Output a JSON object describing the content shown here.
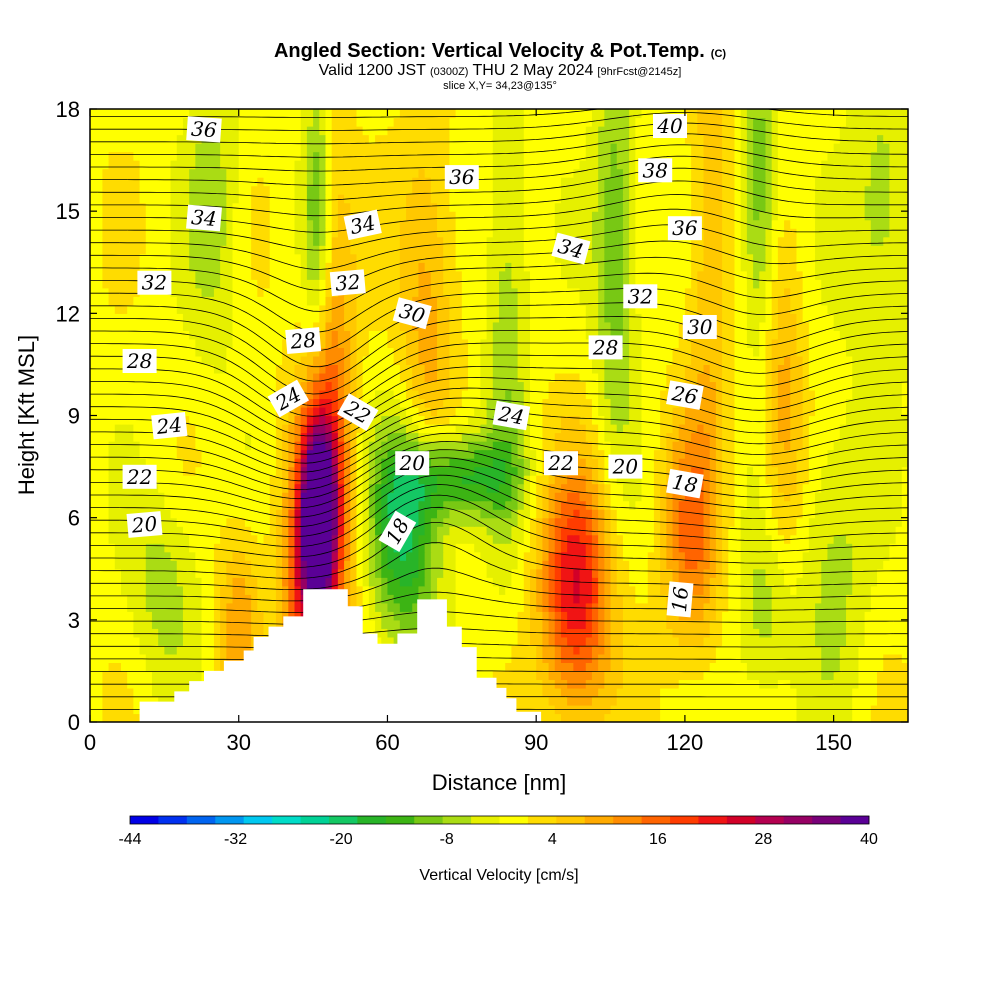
{
  "title": {
    "main": "Angled Section: Vertical Velocity & Pot.Temp.",
    "main_unit": "(C)",
    "line2_a": "Valid 1200 JST",
    "line2_b": "(0300Z)",
    "line2_c": "THU 2 May 2024",
    "line2_d": "[9hrFcst@2145z]",
    "line3": "slice X,Y= 34,23@135°"
  },
  "chart_data": {
    "type": "heatmap",
    "xlabel": "Distance [nm]",
    "ylabel": "Height [Kft MSL]",
    "xlim": [
      0,
      165
    ],
    "ylim": [
      0,
      18
    ],
    "x_ticks": [
      0,
      30,
      60,
      90,
      120,
      150
    ],
    "y_ticks": [
      0,
      3,
      6,
      9,
      12,
      15,
      18
    ],
    "grid": false,
    "colorbar": {
      "title": "Vertical Velocity [cm/s]",
      "labels": [
        "-44",
        "-32",
        "-20",
        "-8",
        "4",
        "16",
        "28",
        "40"
      ],
      "colors": [
        "#0000e6",
        "#0030f0",
        "#0064f0",
        "#0096f0",
        "#00c8f0",
        "#00dcc8",
        "#00d296",
        "#14c864",
        "#28b428",
        "#3cb414",
        "#78c814",
        "#aadc14",
        "#e6f000",
        "#ffff00",
        "#ffdc00",
        "#ffc800",
        "#ffaa00",
        "#ff8c00",
        "#ff6400",
        "#ff3c00",
        "#f01414",
        "#d20028",
        "#b40050",
        "#960064",
        "#780078",
        "#5a0096"
      ]
    },
    "vertical_velocity_cm_s": {
      "background": 0,
      "features": [
        {
          "x": 46,
          "y": 6.2,
          "sx": 2.2,
          "sy": 1.6,
          "amp": 42
        },
        {
          "x": 46,
          "y": 5.5,
          "sx": 4.5,
          "sy": 3.2,
          "amp": 20
        },
        {
          "x": 43,
          "y": 3.5,
          "sx": 3,
          "sy": 1.5,
          "amp": 10
        },
        {
          "x": 49,
          "y": 11,
          "sx": 3,
          "sy": 5,
          "amp": 10
        },
        {
          "x": 46,
          "y": 15,
          "sx": 2,
          "sy": 3,
          "amp": -12
        },
        {
          "x": 64,
          "y": 5.5,
          "sx": 5,
          "sy": 2.2,
          "amp": -20
        },
        {
          "x": 74,
          "y": 7.2,
          "sx": 8,
          "sy": 0.9,
          "amp": -16
        },
        {
          "x": 68,
          "y": 12,
          "sx": 4,
          "sy": 4,
          "amp": 10
        },
        {
          "x": 84,
          "y": 12,
          "sx": 3,
          "sy": 5,
          "amp": -8
        },
        {
          "x": 98,
          "y": 3.8,
          "sx": 5,
          "sy": 2.5,
          "amp": 24
        },
        {
          "x": 121,
          "y": 5.5,
          "sx": 4,
          "sy": 2.5,
          "amp": 14
        },
        {
          "x": 106,
          "y": 14,
          "sx": 3,
          "sy": 4,
          "amp": -12
        },
        {
          "x": 125,
          "y": 14,
          "sx": 3,
          "sy": 5,
          "amp": 8
        },
        {
          "x": 135,
          "y": 15.5,
          "sx": 2.5,
          "sy": 3,
          "amp": -12
        },
        {
          "x": 140,
          "y": 9,
          "sx": 3,
          "sy": 3,
          "amp": 10
        },
        {
          "x": 150,
          "y": 5,
          "sx": 5,
          "sy": 3,
          "amp": -7
        },
        {
          "x": 160,
          "y": 15,
          "sx": 5,
          "sy": 3,
          "amp": -8
        },
        {
          "x": 25,
          "y": 15,
          "sx": 4,
          "sy": 3,
          "amp": -7
        },
        {
          "x": 15,
          "y": 4,
          "sx": 5,
          "sy": 2,
          "amp": -7
        },
        {
          "x": 30,
          "y": 3,
          "sx": 3,
          "sy": 2,
          "amp": 10
        },
        {
          "x": 136,
          "y": 3,
          "sx": 4,
          "sy": 2,
          "amp": -7
        }
      ]
    },
    "terrain_profile": [
      [
        0,
        0
      ],
      [
        10,
        0
      ],
      [
        10,
        0.6
      ],
      [
        17,
        0.6
      ],
      [
        17,
        0.9
      ],
      [
        20,
        0.9
      ],
      [
        20,
        1.2
      ],
      [
        23,
        1.2
      ],
      [
        23,
        1.5
      ],
      [
        27,
        1.5
      ],
      [
        27,
        1.8
      ],
      [
        31,
        1.8
      ],
      [
        31,
        2.1
      ],
      [
        33,
        2.1
      ],
      [
        33,
        2.5
      ],
      [
        36,
        2.5
      ],
      [
        36,
        2.8
      ],
      [
        39,
        2.8
      ],
      [
        39,
        3.1
      ],
      [
        43,
        3.1
      ],
      [
        43,
        3.9
      ],
      [
        52,
        3.9
      ],
      [
        52,
        3.4
      ],
      [
        55,
        3.4
      ],
      [
        55,
        2.6
      ],
      [
        58,
        2.6
      ],
      [
        58,
        2.3
      ],
      [
        62,
        2.3
      ],
      [
        62,
        2.6
      ],
      [
        66,
        2.6
      ],
      [
        66,
        3.6
      ],
      [
        72,
        3.6
      ],
      [
        72,
        2.8
      ],
      [
        75,
        2.8
      ],
      [
        75,
        2.2
      ],
      [
        78,
        2.2
      ],
      [
        78,
        1.3
      ],
      [
        82,
        1.3
      ],
      [
        82,
        1.0
      ],
      [
        84,
        1.0
      ],
      [
        84,
        0.7
      ],
      [
        86,
        0.7
      ],
      [
        86,
        0.3
      ],
      [
        91,
        0.3
      ],
      [
        91,
        0
      ],
      [
        165,
        0
      ]
    ],
    "potential_temperature_C": {
      "contour_levels": [
        15,
        15.5,
        16,
        16.5,
        17,
        17.5,
        18,
        18.5,
        19,
        19.5,
        20,
        20.5,
        21,
        21.5,
        22,
        22.5,
        23,
        23.5,
        24,
        24.5,
        25,
        25.5,
        26,
        26.5,
        27,
        27.5,
        28,
        28.5,
        29,
        29.5,
        30,
        30.5,
        31,
        31.5,
        32,
        32.5,
        33,
        33.5,
        34,
        34.5,
        35,
        35.5,
        36,
        36.5,
        37,
        37.5,
        38,
        38.5,
        39,
        39.5,
        40,
        40.5,
        41
      ],
      "contour_labels": [
        {
          "text": "36",
          "x": 23,
          "y": 17.4,
          "angle": 4
        },
        {
          "text": "34",
          "x": 23,
          "y": 14.8,
          "angle": 5
        },
        {
          "text": "32",
          "x": 13,
          "y": 12.9,
          "angle": 0
        },
        {
          "text": "28",
          "x": 10,
          "y": 10.6,
          "angle": 0
        },
        {
          "text": "24",
          "x": 16,
          "y": 8.7,
          "angle": -6
        },
        {
          "text": "22",
          "x": 10,
          "y": 7.2,
          "angle": 0
        },
        {
          "text": "20",
          "x": 11,
          "y": 5.8,
          "angle": -5
        },
        {
          "text": "24",
          "x": 40,
          "y": 9.5,
          "angle": -30
        },
        {
          "text": "28",
          "x": 43,
          "y": 11.2,
          "angle": -5
        },
        {
          "text": "32",
          "x": 52,
          "y": 12.9,
          "angle": -5
        },
        {
          "text": "34",
          "x": 55,
          "y": 14.6,
          "angle": -12
        },
        {
          "text": "30",
          "x": 65,
          "y": 12.0,
          "angle": 15
        },
        {
          "text": "22",
          "x": 54,
          "y": 9.1,
          "angle": 30
        },
        {
          "text": "20",
          "x": 65,
          "y": 7.6,
          "angle": 0
        },
        {
          "text": "18",
          "x": 62,
          "y": 5.6,
          "angle": -60
        },
        {
          "text": "36",
          "x": 75,
          "y": 16.0,
          "angle": 0
        },
        {
          "text": "24",
          "x": 85,
          "y": 9.0,
          "angle": 10
        },
        {
          "text": "22",
          "x": 95,
          "y": 7.6,
          "angle": 0
        },
        {
          "text": "34",
          "x": 97,
          "y": 13.9,
          "angle": 15
        },
        {
          "text": "20",
          "x": 108,
          "y": 7.5,
          "angle": 0
        },
        {
          "text": "28",
          "x": 104,
          "y": 11.0,
          "angle": 0
        },
        {
          "text": "32",
          "x": 111,
          "y": 12.5,
          "angle": 0
        },
        {
          "text": "38",
          "x": 114,
          "y": 16.2,
          "angle": 0
        },
        {
          "text": "36",
          "x": 120,
          "y": 14.5,
          "angle": 0
        },
        {
          "text": "40",
          "x": 117,
          "y": 17.5,
          "angle": 0
        },
        {
          "text": "30",
          "x": 123,
          "y": 11.6,
          "angle": 0
        },
        {
          "text": "26",
          "x": 120,
          "y": 9.6,
          "angle": 10
        },
        {
          "text": "18",
          "x": 120,
          "y": 7.0,
          "angle": 10
        },
        {
          "text": "16",
          "x": 119,
          "y": 3.6,
          "angle": -85
        }
      ]
    }
  }
}
